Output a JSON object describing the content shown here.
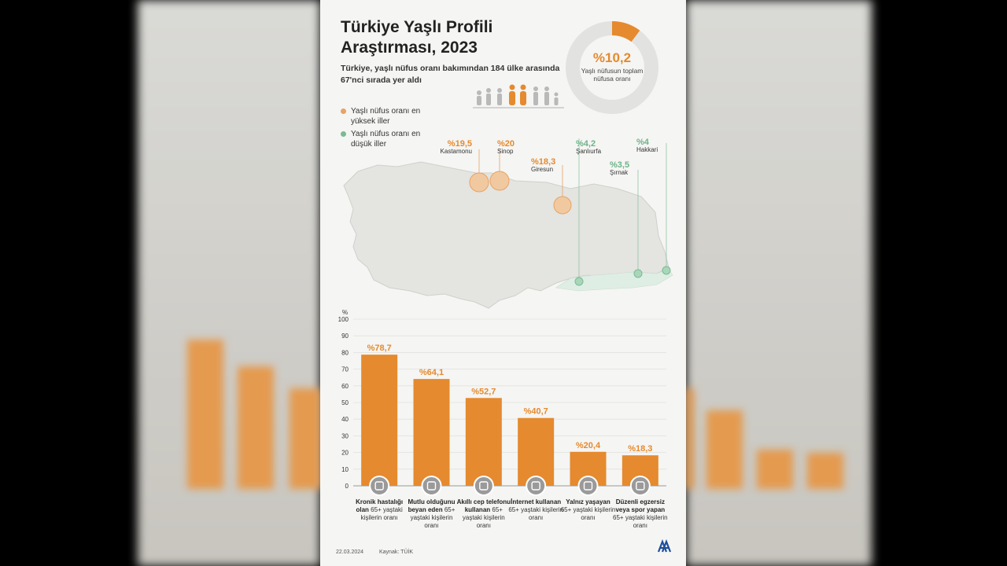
{
  "title": "Türkiye Yaşlı Profili Araştırması, 2023",
  "subtitle": "Türkiye, yaşlı nüfus oranı bakımından 184 ülke arasında 67'nci sırada yer aldı",
  "donut": {
    "value": "%10,2",
    "label": "Yaşlı nüfusun toplam nüfusa oranı",
    "fraction": 0.102,
    "color": "#e58a2e"
  },
  "legend": [
    {
      "label": "Yaşlı nüfus oranı en yüksek iller",
      "color": "#e6a466"
    },
    {
      "label": "Yaşlı nüfus oranı en düşük iller",
      "color": "#79bb92"
    }
  ],
  "map_pins": {
    "high": [
      {
        "value": "%19,5",
        "city": "Kastamonu"
      },
      {
        "value": "%20",
        "city": "Sinop"
      },
      {
        "value": "%18,3",
        "city": "Giresun"
      }
    ],
    "low": [
      {
        "value": "%4,2",
        "city": "Şanlıurfa"
      },
      {
        "value": "%3,5",
        "city": "Şırnak"
      },
      {
        "value": "%4",
        "city": "Hakkari"
      }
    ]
  },
  "chart_data": {
    "type": "bar",
    "ylabel": "%",
    "ylim": [
      0,
      100
    ],
    "yticks": [
      0,
      10,
      20,
      30,
      40,
      50,
      60,
      70,
      80,
      90,
      100
    ],
    "values": [
      78.7,
      64.1,
      52.7,
      40.7,
      20.4,
      18.3
    ],
    "value_labels": [
      "%78,7",
      "%64,1",
      "%52,7",
      "%40,7",
      "%20,4",
      "%18,3"
    ],
    "categories": [
      {
        "bold": "Kronik hastalığı olan",
        "rest": " 65+ yaştaki kişilerin oranı"
      },
      {
        "bold": "Mutlu olduğunu beyan eden",
        "rest": " 65+ yaştaki kişilerin oranı"
      },
      {
        "bold": "Akıllı cep telefonu kullanan",
        "rest": " 65+ yaştaki kişilerin oranı"
      },
      {
        "bold": "İnternet kullanan",
        "rest": " 65+ yaştaki kişilerin oranı"
      },
      {
        "bold": "Yalnız yaşayan",
        "rest": " 65+ yaştaki kişilerin oranı"
      },
      {
        "bold": "Düzenli egzersiz veya spor yapan",
        "rest": " 65+ yaştaki kişilerin oranı"
      }
    ],
    "icons": [
      "hospital-icon",
      "happy-faces-icon",
      "smartphone-icon",
      "wifi-icon",
      "house-icon",
      "runner-icon"
    ],
    "bar_color": "#e58a2e",
    "grid": true
  },
  "footer": {
    "date": "22.03.2024",
    "source": "Kaynak: TÜİK"
  }
}
